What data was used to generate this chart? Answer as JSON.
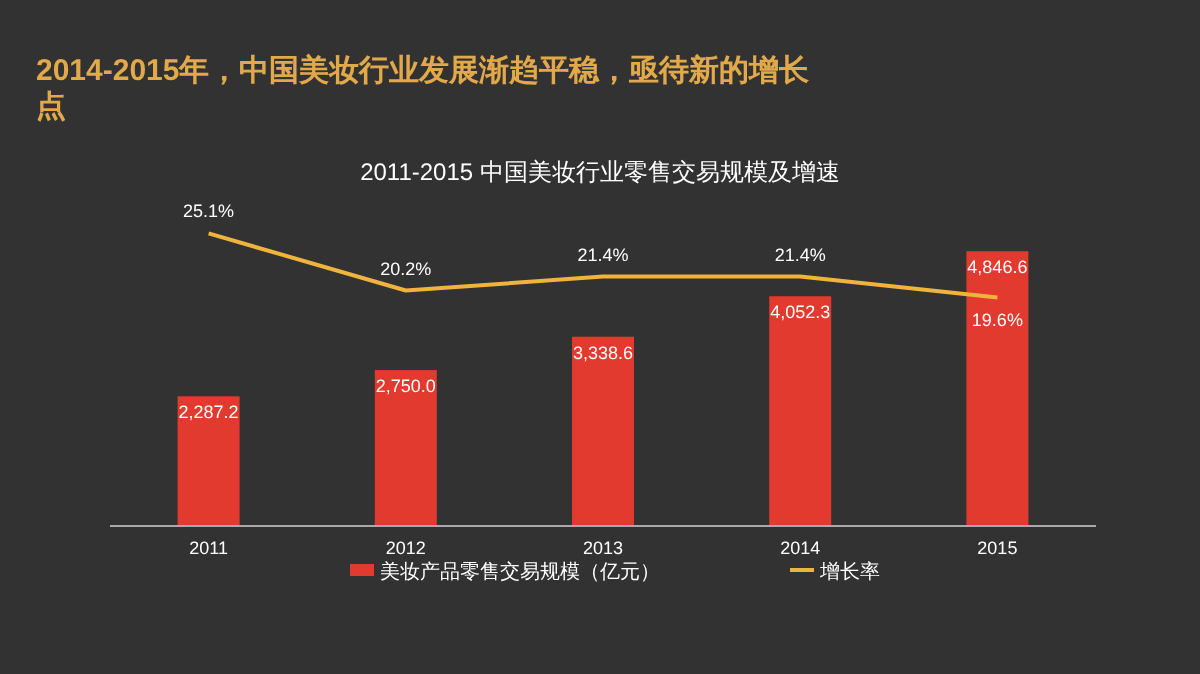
{
  "chart_data": {
    "type": "bar",
    "title": "2014-2015年，中国美妆行业发展渐趋平稳，亟待新的增长点",
    "subtitle": "2011-2015 中国美妆行业零售交易规模及增速",
    "categories": [
      "2011",
      "2012",
      "2013",
      "2014",
      "2015"
    ],
    "series": [
      {
        "name": "美妆产品零售交易规模（亿元）",
        "color": "#e23a2e",
        "values": [
          2287.2,
          2750.0,
          3338.6,
          4052.3,
          4846.6
        ],
        "value_labels": [
          "2,287.2",
          "2,750.0",
          "3,338.6",
          "4,052.3",
          "4,846.6"
        ]
      },
      {
        "name": "增长率",
        "type": "line",
        "axis": "y2",
        "color": "#f0b43c",
        "values": [
          25.1,
          20.2,
          21.4,
          21.4,
          19.6
        ],
        "value_labels": [
          "25.1%",
          "20.2%",
          "21.4%",
          "21.4%",
          "19.6%"
        ]
      }
    ],
    "tick_labels": "x",
    "grid": false,
    "legend": "bottom"
  }
}
